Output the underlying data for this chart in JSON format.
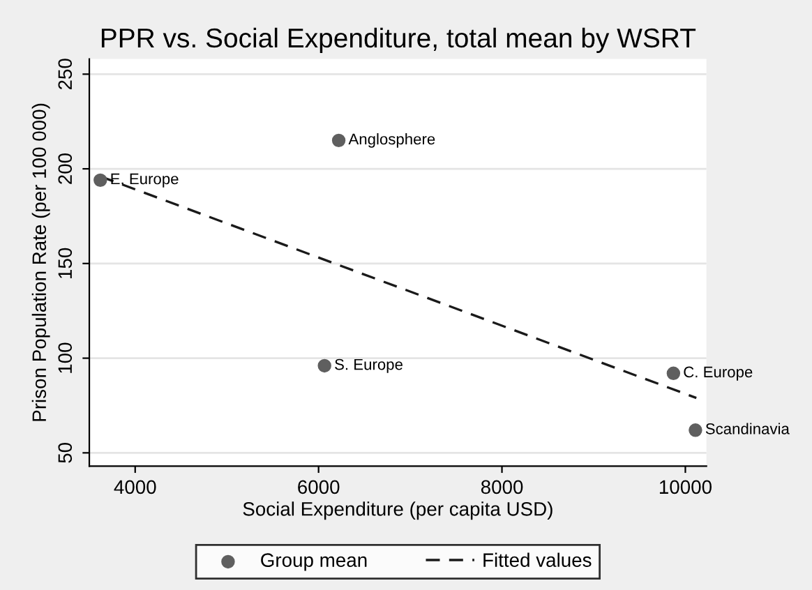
{
  "chart_data": {
    "type": "scatter",
    "title": "PPR vs. Social Expenditure, total mean by WSRT",
    "xlabel": "Social Expenditure (per capita USD)",
    "ylabel": "Prison Population Rate (per 100 000)",
    "series": [
      {
        "name": "Group mean",
        "color": "#5f5f5f",
        "marker": "circle",
        "x": [
          3620,
          6220,
          6065,
          9870,
          10110
        ],
        "values": [
          194,
          215,
          96,
          92,
          62
        ]
      },
      {
        "name": "Fitted values",
        "type": "line",
        "color": "#1a1a1a",
        "line_style": "dashed",
        "marker": "none",
        "x": [
          3620,
          10120
        ],
        "values": [
          196,
          79
        ]
      }
    ],
    "annotations": [
      {
        "text": "E. Europe",
        "x": 3620,
        "y": 194
      },
      {
        "text": "Anglosphere",
        "x": 6220,
        "y": 215
      },
      {
        "text": "S. Europe",
        "x": 6065,
        "y": 96
      },
      {
        "text": "C. Europe",
        "x": 9870,
        "y": 92
      },
      {
        "text": "Scandinavia",
        "x": 10110,
        "y": 62
      }
    ],
    "xlim": [
      3500,
      10230
    ],
    "ylim": [
      43,
      258
    ],
    "xticks": [
      4000,
      6000,
      8000,
      10000
    ],
    "yticks": [
      50,
      100,
      150,
      200,
      250
    ],
    "grid": "y",
    "legend": "bottom"
  }
}
